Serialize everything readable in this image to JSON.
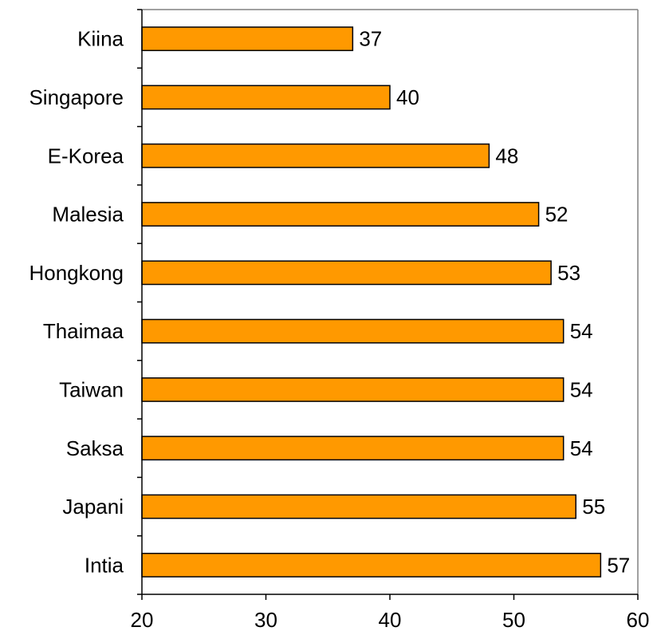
{
  "chart_data": {
    "type": "bar",
    "orientation": "horizontal",
    "categories": [
      "Kiina",
      "Singapore",
      "E-Korea",
      "Malesia",
      "Hongkong",
      "Thaimaa",
      "Taiwan",
      "Saksa",
      "Japani",
      "Intia"
    ],
    "values": [
      37,
      40,
      48,
      52,
      53,
      54,
      54,
      54,
      55,
      57
    ],
    "xlim": [
      20,
      60
    ],
    "x_ticks": [
      20,
      30,
      40,
      50,
      60
    ],
    "x_tick_labels": [
      "20",
      "30",
      "40",
      "50",
      "60"
    ],
    "data_labels": [
      "37",
      "40",
      "48",
      "52",
      "53",
      "54",
      "54",
      "54",
      "55",
      "57"
    ],
    "grid": false,
    "legend": "none",
    "bar_color": "#ff9900",
    "bar_edge_color": "#000000",
    "frame_color": "#808080"
  }
}
